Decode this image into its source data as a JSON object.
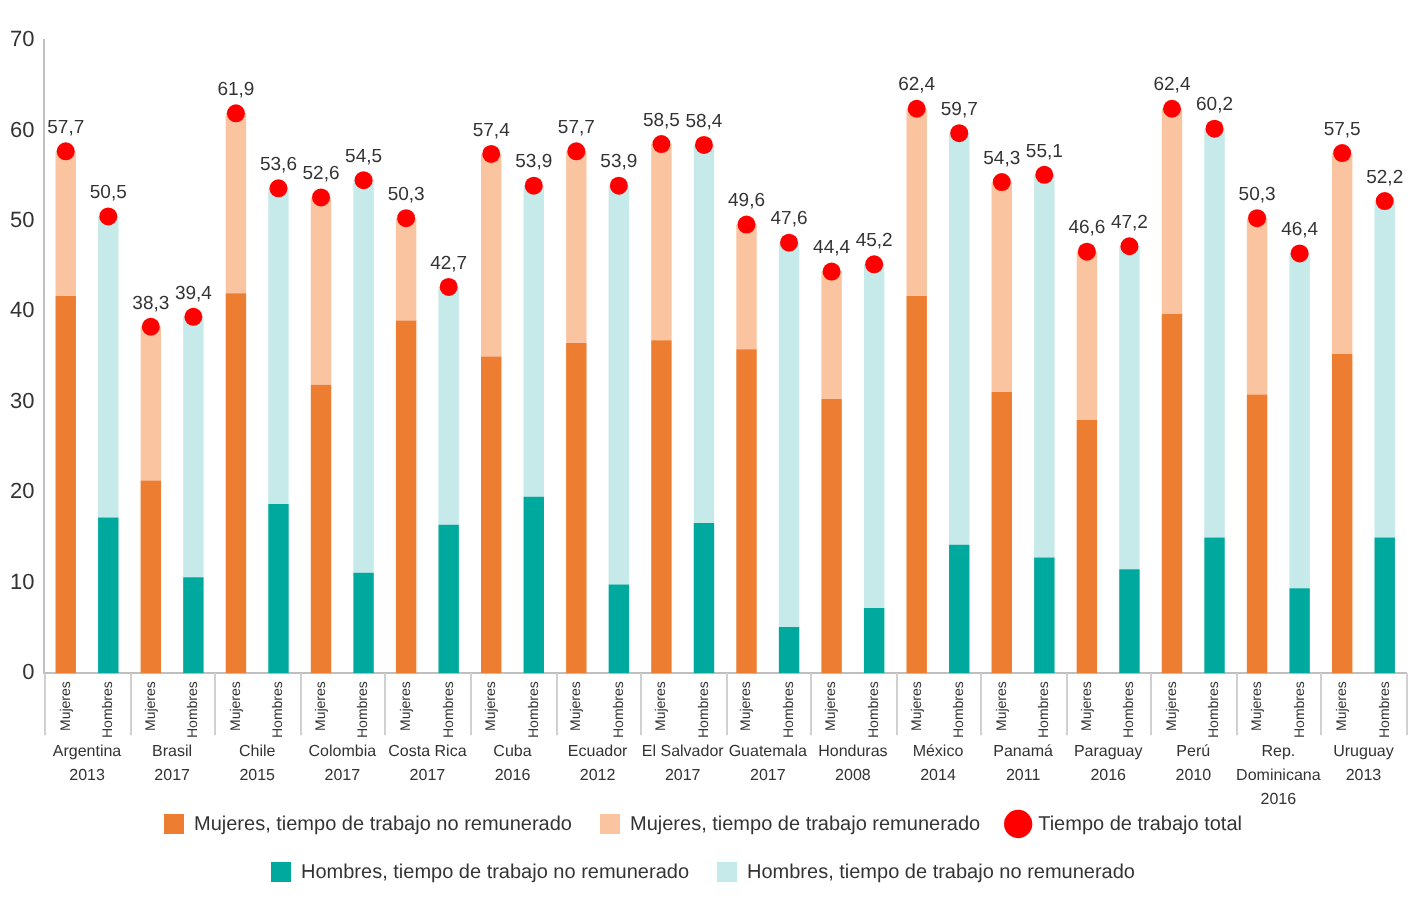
{
  "chart_data": {
    "type": "bar",
    "stacked": true,
    "categories": [
      "Mujeres",
      "Hombres",
      "Mujeres",
      "Hombres",
      "Mujeres",
      "Hombres",
      "Mujeres",
      "Hombres",
      "Mujeres",
      "Hombres",
      "Mujeres",
      "Hombres",
      "Mujeres",
      "Hombres",
      "Mujeres",
      "Hombres",
      "Mujeres",
      "Hombres",
      "Mujeres",
      "Hombres",
      "Mujeres",
      "Hombres",
      "Mujeres",
      "Hombres",
      "Mujeres",
      "Hombres",
      "Mujeres",
      "Hombres",
      "Mujeres",
      "Hombres",
      "Mujeres",
      "Hombres"
    ],
    "series": [
      {
        "name": "Mujeres, tiempo de trabajo no remunerado",
        "color": "#ed7d31",
        "values": [
          41.7,
          null,
          21.3,
          null,
          42.0,
          null,
          31.9,
          null,
          39.0,
          null,
          35.0,
          null,
          36.5,
          null,
          36.8,
          null,
          35.8,
          null,
          30.3,
          null,
          41.7,
          null,
          31.1,
          null,
          28.0,
          null,
          39.7,
          null,
          30.8,
          null,
          35.3,
          null
        ]
      },
      {
        "name": "Mujeres, tiempo de trabajo remunerado",
        "color": "#fbc4a0",
        "values": [
          16.0,
          null,
          17.0,
          null,
          19.9,
          null,
          20.7,
          null,
          11.3,
          null,
          22.4,
          null,
          21.2,
          null,
          21.7,
          null,
          13.8,
          null,
          14.1,
          null,
          20.7,
          null,
          23.2,
          null,
          18.6,
          null,
          22.7,
          null,
          19.5,
          null,
          22.2,
          null
        ]
      },
      {
        "name": "Tiempo de trabajo total",
        "type": "scatter",
        "color": "#ff0000",
        "values": [
          57.7,
          50.5,
          38.3,
          39.4,
          61.9,
          53.6,
          52.6,
          54.5,
          50.3,
          42.7,
          57.4,
          53.9,
          57.7,
          53.9,
          58.5,
          58.4,
          49.6,
          47.6,
          44.4,
          45.2,
          62.4,
          59.7,
          54.3,
          55.1,
          46.6,
          47.2,
          62.4,
          60.2,
          50.3,
          46.4,
          57.5,
          52.2
        ],
        "value_labels": [
          "57,7",
          "50,5",
          "38,3",
          "39,4",
          "61,9",
          "53,6",
          "52,6",
          "54,5",
          "50,3",
          "42,7",
          "57,4",
          "53,9",
          "57,7",
          "53,9",
          "58,5",
          "58,4",
          "49,6",
          "47,6",
          "44,4",
          "45,2",
          "62,4",
          "59,7",
          "54,3",
          "55,1",
          "46,6",
          "47,2",
          "62,4",
          "60,2",
          "50,3",
          "46,4",
          "57,5",
          "52,2"
        ]
      },
      {
        "name": "Hombres, tiempo de trabajo no remunerado",
        "color": "#00a99d",
        "values": [
          null,
          17.2,
          null,
          10.6,
          null,
          18.7,
          null,
          11.1,
          null,
          16.4,
          null,
          19.5,
          null,
          9.8,
          null,
          16.6,
          null,
          5.1,
          null,
          7.2,
          null,
          14.2,
          null,
          12.8,
          null,
          11.5,
          null,
          15.0,
          null,
          9.4,
          null,
          15.0
        ]
      },
      {
        "name": "Hombres, tiempo de trabajo no remunerado",
        "color": "#c6e9e9",
        "values": [
          null,
          33.3,
          null,
          28.8,
          null,
          34.9,
          null,
          43.4,
          null,
          26.3,
          null,
          34.4,
          null,
          44.1,
          null,
          41.8,
          null,
          42.5,
          null,
          38.0,
          null,
          45.5,
          null,
          42.3,
          null,
          35.7,
          null,
          45.2,
          null,
          37.0,
          null,
          37.2
        ]
      }
    ],
    "ylim": [
      0,
      70
    ],
    "yticks": [
      0,
      10,
      20,
      30,
      40,
      50,
      60,
      70
    ],
    "legend": "bottom",
    "marker": "circle",
    "annotations": [
      "Argentina\n2013",
      "Brasil\n2017",
      "Chile\n2015",
      "Colombia\n2017",
      "Costa Rica\n2017",
      "Cuba\n2016",
      "Ecuador\n2012",
      "El Salvador\n2017",
      "Guatemala\n2017",
      "Honduras\n2008",
      "México\n2014",
      "Panamá\n2011",
      "Paraguay\n2016",
      "Perú\n2010",
      "Rep.\nDominicana\n2016",
      "Uruguay\n2013"
    ]
  }
}
